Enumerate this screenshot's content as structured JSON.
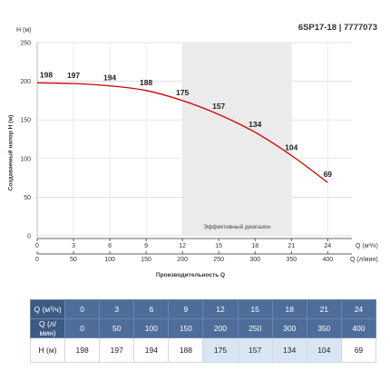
{
  "model_title": "6SP17-18 | 7777073",
  "chart_data": {
    "type": "line",
    "ylabel": "Создаваемый напор Н (м)",
    "y_unit_label": "H (м)",
    "xlabel": "Производительность Q",
    "x1_unit_label": "Q (м³/ч)",
    "x2_unit_label": "Q (л/мин)",
    "ylim": [
      0,
      250
    ],
    "y_ticks": [
      0,
      50,
      100,
      150,
      200,
      250
    ],
    "x_m3h": [
      0,
      3,
      6,
      9,
      12,
      15,
      18,
      21,
      24
    ],
    "x_lmin": [
      0,
      50,
      100,
      150,
      200,
      250,
      300,
      350,
      400
    ],
    "xlim_m3h": [
      0,
      26
    ],
    "series": [
      {
        "values": [
          198,
          197,
          194,
          188,
          175,
          157,
          134,
          104,
          69
        ],
        "color": "#cc0000"
      }
    ],
    "effective_range_m3h": [
      12,
      21
    ],
    "effective_label": "Эффективный диапазон",
    "grid": true
  },
  "table": {
    "row_labels": [
      "Q (м³/ч)",
      "Q (л/мин)",
      "Н (м)"
    ],
    "effective_cols": [
      4,
      5,
      6,
      7
    ]
  }
}
